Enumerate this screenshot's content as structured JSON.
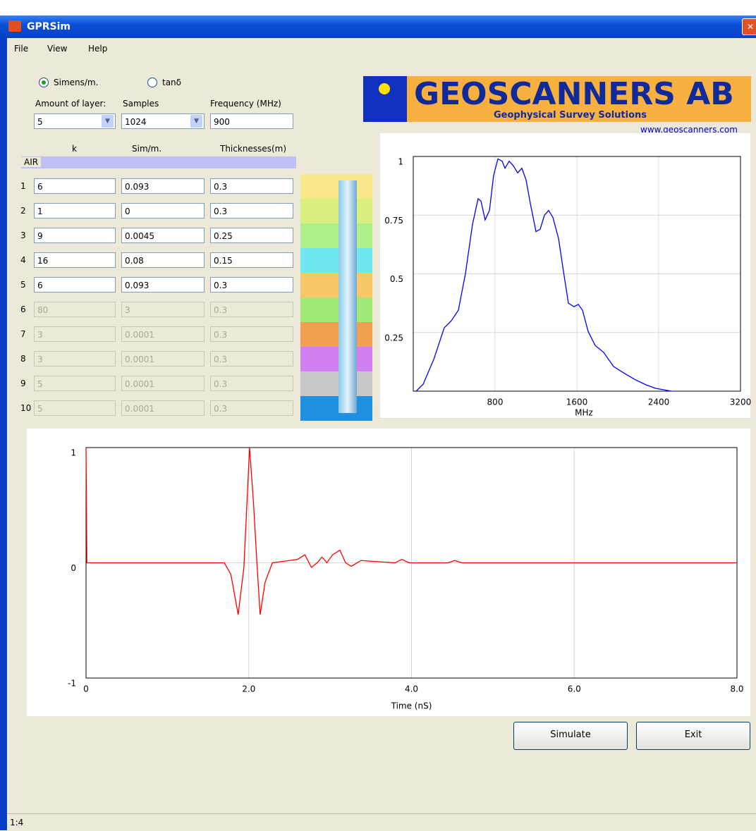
{
  "window": {
    "title": "GPRSim"
  },
  "menu": [
    "File",
    "View",
    "Help"
  ],
  "options": {
    "radio": [
      "Simens/m.",
      "tanδ"
    ],
    "layers_label": "Amount of layer:",
    "layers_value": "5",
    "samples_label": "Samples",
    "samples_value": "1024",
    "frequency_label": "Frequency (MHz)",
    "frequency_value": "900"
  },
  "table": {
    "headers": [
      "k",
      "Sim/m.",
      "Thicknesses(m)"
    ],
    "air": "AIR",
    "rows": [
      [
        "1",
        "6",
        "0.093",
        "0.3"
      ],
      [
        "2",
        "1",
        "0",
        "0.3"
      ],
      [
        "3",
        "9",
        "0.0045",
        "0.25"
      ],
      [
        "4",
        "16",
        "0.08",
        "0.15"
      ],
      [
        "5",
        "6",
        "0.093",
        "0.3"
      ],
      [
        "6",
        "80",
        "3",
        "0.3"
      ],
      [
        "7",
        "3",
        "0.0001",
        "0.3"
      ],
      [
        "8",
        "3",
        "0.0001",
        "0.3"
      ],
      [
        "9",
        "5",
        "0.0001",
        "0.3"
      ],
      [
        "10",
        "5",
        "0.0001",
        "0.3"
      ]
    ]
  },
  "logo": {
    "name": "GEOSCANNERS AB",
    "tagline": "Geophysical Survey Solutions",
    "link": "www.geoscanners.com"
  },
  "chart_data": [
    {
      "type": "line",
      "color": "#0000ff",
      "xlabel": "MHz",
      "grid": true,
      "x": [
        28,
        97,
        200,
        303,
        372,
        441,
        510,
        579,
        634,
        662,
        703,
        745,
        786,
        828,
        869,
        897,
        938,
        979,
        1021,
        1062,
        1103,
        1145,
        1200,
        1241,
        1283,
        1324,
        1366,
        1421,
        1462,
        1517,
        1572,
        1614,
        1655,
        1710,
        1779,
        1862,
        1959,
        2069,
        2166,
        2276,
        2372,
        2524
      ],
      "values": [
        0,
        0.03,
        0.135,
        0.27,
        0.3,
        0.345,
        0.5,
        0.71,
        0.82,
        0.81,
        0.73,
        0.77,
        0.92,
        0.99,
        0.98,
        0.95,
        0.98,
        0.96,
        0.93,
        0.95,
        0.9,
        0.8,
        0.68,
        0.69,
        0.75,
        0.77,
        0.74,
        0.65,
        0.53,
        0.375,
        0.36,
        0.37,
        0.345,
        0.255,
        0.195,
        0.165,
        0.105,
        0.075,
        0.05,
        0.027,
        0.012,
        0
      ],
      "xlim": [
        0,
        3200
      ],
      "xticks": [
        800,
        1600,
        2400,
        3200
      ],
      "ylim": [
        0,
        1
      ],
      "yticks": [
        0.25,
        0.5,
        0.75,
        1
      ]
    },
    {
      "type": "line",
      "color": "#ff0000",
      "xlabel": "Time (nS)",
      "grid": true,
      "x": [
        0,
        0.01,
        1.7,
        1.78,
        1.87,
        1.94,
        2.01,
        2.06,
        2.1,
        2.14,
        2.2,
        2.29,
        2.5,
        2.6,
        2.69,
        2.77,
        2.84,
        2.9,
        2.96,
        3.03,
        3.12,
        3.19,
        3.26,
        3.38,
        3.8,
        3.88,
        3.97,
        4.45,
        4.53,
        4.62,
        8
      ],
      "values": [
        1,
        0,
        0,
        -0.1,
        -0.45,
        -0.04,
        1,
        0.5,
        0,
        -0.45,
        -0.17,
        0,
        0.02,
        0.03,
        0.07,
        -0.04,
        0,
        0.05,
        0,
        0.07,
        0.11,
        0,
        -0.03,
        0.02,
        0,
        0.03,
        0,
        0,
        0.02,
        0,
        0
      ],
      "xlim": [
        0,
        8
      ],
      "xticks": [
        0,
        {
          "value": 2,
          "label": "2.0"
        },
        {
          "value": 4,
          "label": "4.0"
        },
        {
          "value": 6,
          "label": "6.0"
        },
        {
          "value": 8,
          "label": "8.0"
        }
      ],
      "ylim": [
        -1,
        1
      ],
      "yticks": [
        -1,
        0,
        1
      ]
    }
  ],
  "buttons": [
    "Simulate",
    "Exit"
  ],
  "status": "1:4"
}
